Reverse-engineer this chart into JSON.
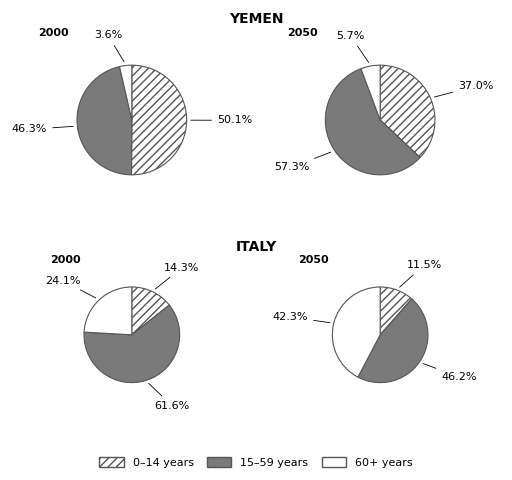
{
  "title_yemen": "YEMEN",
  "title_italy": "ITALY",
  "charts": {
    "yemen_2000": {
      "label": "2000",
      "values": [
        50.1,
        46.3,
        3.6
      ],
      "slice_labels": [
        "50.1%",
        "46.3%",
        "3.6%"
      ]
    },
    "yemen_2050": {
      "label": "2050",
      "values": [
        37.0,
        57.3,
        5.7
      ],
      "slice_labels": [
        "37.0%",
        "57.3%",
        "5.7%"
      ]
    },
    "italy_2000": {
      "label": "2000",
      "values": [
        14.3,
        61.6,
        24.1
      ],
      "slice_labels": [
        "14.3%",
        "61.6%",
        "24.1%"
      ]
    },
    "italy_2050": {
      "label": "2050",
      "values": [
        11.5,
        46.2,
        42.3
      ],
      "slice_labels": [
        "11.5%",
        "46.2%",
        "42.3%"
      ]
    }
  },
  "categories": [
    "0–14 years",
    "15–59 years",
    "60+ years"
  ],
  "slice_facecolors": [
    "white",
    "#7a7a7a",
    "white"
  ],
  "slice_hatches": [
    "////",
    "",
    ""
  ],
  "slice_edgecolor": "#555555",
  "bg_color": "#ffffff",
  "label_fontsize": 8,
  "title_fontsize": 10,
  "year_fontsize": 8
}
